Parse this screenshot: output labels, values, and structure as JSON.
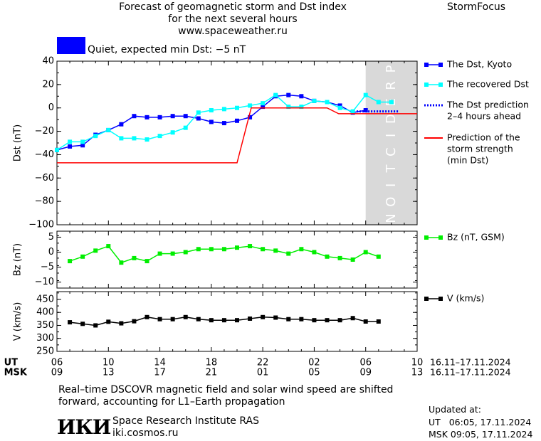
{
  "header": {
    "title_line1": "Forecast of geomagnetic storm and Dst index",
    "title_line2": "for the next several hours",
    "title_line3": "www.spaceweather.ru",
    "brand": "StormFocus",
    "status_text": "Quiet, expected min Dst: −5 nT",
    "status_color": "#0000ff"
  },
  "footer": {
    "note_line1": "Real–time DSCOVR magnetic field and solar wind speed are shifted",
    "note_line2": "forward, accounting for L1–Earth propagation",
    "logo_text": "ИКИ",
    "institute": "Space Research Institute RAS",
    "website": "iki.cosmos.ru",
    "updated_label": "Updated at:",
    "updated_ut": "UT   06:05, 17.11.2024",
    "updated_msk": "MSK 09:05, 17.11.2024"
  },
  "chart_data": [
    {
      "type": "line",
      "ylabel": "Dst (nT)",
      "ylim": [
        -100,
        40
      ],
      "yticks": [
        40,
        20,
        0,
        -20,
        -40,
        -60,
        -80,
        -100
      ],
      "xlim": [
        6,
        34
      ],
      "grid": false,
      "legend_position": "right",
      "prediction_label": "PREDICTION",
      "prediction_region": [
        30,
        34
      ],
      "series": [
        {
          "name": "The Dst, Kyoto",
          "color": "#0000ff",
          "style": "solid-square",
          "x": [
            6,
            7,
            8,
            9,
            10,
            11,
            12,
            13,
            14,
            15,
            16,
            17,
            18,
            19,
            20,
            21,
            22,
            23,
            24,
            25,
            26,
            27,
            28,
            29,
            30
          ],
          "y": [
            -36,
            -33,
            -32,
            -23,
            -19,
            -14,
            -7,
            -8,
            -8,
            -7,
            -7,
            -9,
            -12,
            -13,
            -11,
            -8,
            1,
            10,
            11,
            10,
            6,
            5,
            2,
            -4,
            -2
          ]
        },
        {
          "name": "The recovered Dst",
          "color": "#00ffff",
          "style": "solid-square",
          "x": [
            6,
            7,
            8,
            9,
            10,
            11,
            12,
            13,
            14,
            15,
            16,
            17,
            18,
            19,
            20,
            21,
            22,
            23,
            24,
            25,
            26,
            27,
            28,
            29,
            30,
            31,
            32
          ],
          "y": [
            -36,
            -29,
            -29,
            -24,
            -19,
            -26,
            -26,
            -27,
            -24,
            -21,
            -17,
            -4,
            -2,
            -1,
            0,
            2,
            4,
            11,
            1,
            1,
            6,
            5,
            0,
            -3,
            11,
            5,
            5
          ]
        },
        {
          "name": "The Dst prediction 2–4 hours ahead",
          "color": "#0000ff",
          "style": "dotted",
          "x": [
            29.3,
            31,
            32.6
          ],
          "y": [
            -3,
            -3,
            -3
          ]
        },
        {
          "name": "Prediction of the storm strength (min Dst)",
          "color": "#ff0000",
          "style": "step",
          "x": [
            6,
            20,
            21.1,
            27,
            27.9,
            34
          ],
          "y": [
            -47,
            -47,
            0,
            0,
            -5,
            -5
          ]
        }
      ]
    },
    {
      "type": "line",
      "ylabel": "Bz (nT)",
      "ylim": [
        -12,
        7
      ],
      "yticks": [
        5,
        0,
        -5,
        -10
      ],
      "grid": false,
      "series": [
        {
          "name": "Bz (nT, GSM)",
          "color": "#00ee00",
          "x": [
            7,
            8,
            9,
            10,
            11,
            12,
            13,
            14,
            15,
            16,
            17,
            18,
            19,
            20,
            21,
            22,
            23,
            24,
            25,
            26,
            27,
            28,
            29,
            30,
            31
          ],
          "y": [
            -3,
            -1.5,
            0.5,
            2,
            -3.5,
            -2,
            -3,
            -0.5,
            -0.5,
            0,
            1,
            1,
            1,
            1.5,
            2,
            1,
            0.5,
            -0.5,
            1,
            0,
            -1.5,
            -2,
            -2.5,
            0,
            -1.5
          ]
        }
      ]
    },
    {
      "type": "line",
      "ylabel": "V (km/s)",
      "ylim": [
        250,
        480
      ],
      "yticks": [
        450,
        400,
        350,
        300,
        250
      ],
      "grid": false,
      "series": [
        {
          "name": "V (km/s)",
          "color": "#000000",
          "x": [
            7,
            8,
            9,
            10,
            11,
            12,
            13,
            14,
            15,
            16,
            17,
            18,
            19,
            20,
            21,
            22,
            23,
            24,
            25,
            26,
            27,
            28,
            29,
            30,
            31
          ],
          "y": [
            362,
            356,
            350,
            364,
            358,
            366,
            382,
            374,
            374,
            382,
            374,
            370,
            370,
            370,
            376,
            382,
            380,
            374,
            374,
            370,
            370,
            370,
            378,
            365,
            365
          ]
        }
      ]
    }
  ],
  "x_axis": {
    "ut_label": "UT",
    "msk_label": "MSK",
    "ut_ticks": [
      "06",
      "10",
      "14",
      "18",
      "22",
      "02",
      "06",
      "10"
    ],
    "msk_ticks": [
      "09",
      "13",
      "17",
      "21",
      "01",
      "05",
      "09",
      "13"
    ],
    "date_range_ut": "16.11–17.11.2024",
    "date_range_msk": "16.11–17.11.2024"
  }
}
